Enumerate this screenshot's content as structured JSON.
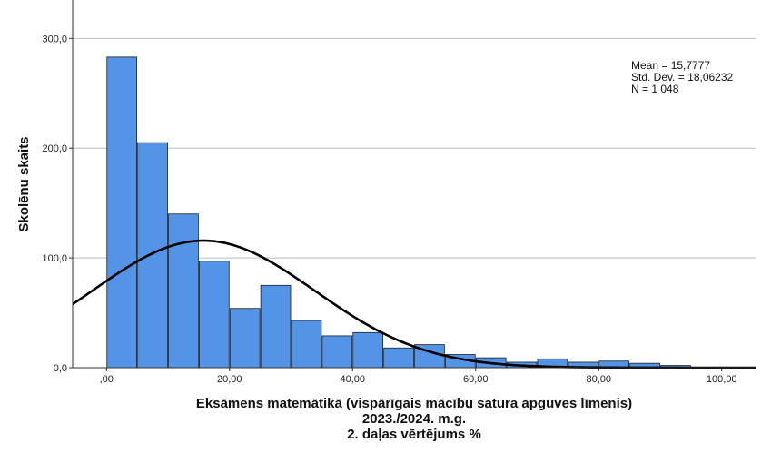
{
  "chart_data": {
    "type": "bar",
    "subtype": "histogram",
    "xlabel_lines": [
      "Eksāmens matemātikā (vispārīgais mācību satura apguves līmenis)",
      "2023./2024. m.g.",
      "2. daļas vērtējums %"
    ],
    "ylabel": "Skolēnu skaits",
    "x_tick_values": [
      0,
      20,
      40,
      60,
      80,
      100
    ],
    "x_tick_labels": [
      ",00",
      "20,00",
      "40,00",
      "60,00",
      "80,00",
      "100,00"
    ],
    "y_tick_values": [
      0,
      100,
      200,
      300
    ],
    "y_tick_labels": [
      "0,0",
      "100,0",
      "200,0",
      "300,0"
    ],
    "xlim": [
      -5.5,
      105.5
    ],
    "ylim": [
      0,
      335
    ],
    "bin_width": 5,
    "bin_starts": [
      0,
      5,
      10,
      15,
      20,
      25,
      30,
      35,
      40,
      45,
      50,
      55,
      60,
      65,
      70,
      75,
      80,
      85,
      90
    ],
    "values": [
      283,
      205,
      140,
      97,
      54,
      75,
      43,
      29,
      32,
      18,
      21,
      12,
      9,
      5,
      8,
      5,
      6,
      4,
      2
    ],
    "normal_curve": {
      "mean": 15.7777,
      "std_dev": 18.06232,
      "n": 1048
    },
    "grid": {
      "horizontal": true,
      "vertical": false
    },
    "bar_color": "#5494e6",
    "bar_edge_color": "#1e1e1e",
    "curve_color": "#000000",
    "stats_lines": [
      "Mean = 15,7777",
      "Std. Dev. = 18,06232",
      "N = 1 048"
    ]
  }
}
